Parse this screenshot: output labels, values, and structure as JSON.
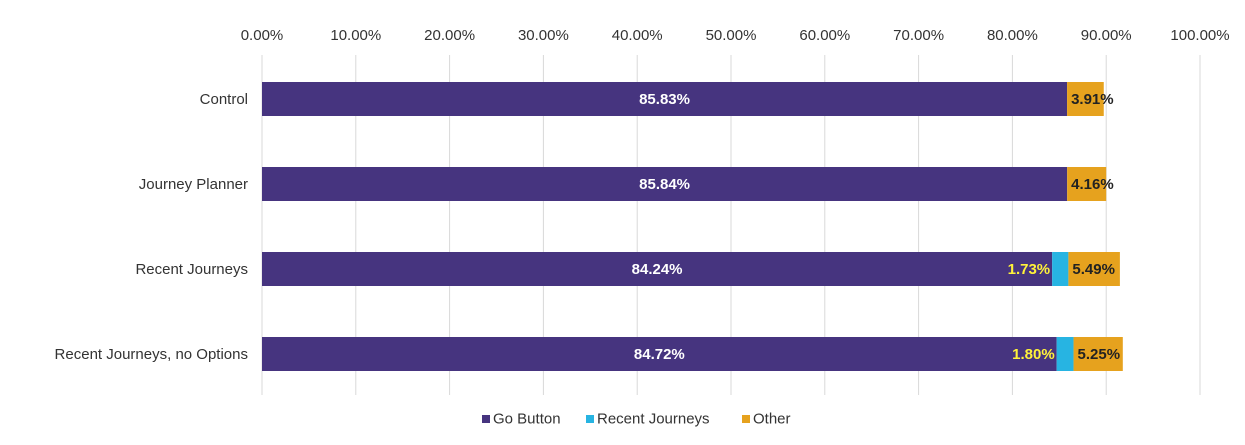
{
  "chart_data": {
    "type": "bar",
    "orientation": "horizontal",
    "stacked": true,
    "categories": [
      "Control",
      "Journey Planner",
      "Recent Journeys",
      "Recent Journeys, no Options"
    ],
    "series": [
      {
        "name": "Go Button",
        "color": "#46347f",
        "values": [
          85.83,
          85.84,
          84.24,
          84.72
        ],
        "labels": [
          "85.83%",
          "85.84%",
          "84.24%",
          "84.72%"
        ],
        "label_color": "#ffffff"
      },
      {
        "name": "Recent Journeys",
        "color": "#27b4e2",
        "values": [
          0,
          0,
          1.73,
          1.8
        ],
        "labels": [
          "",
          "",
          "1.73%",
          "1.80%"
        ],
        "label_color": "#fff23a"
      },
      {
        "name": "Other",
        "color": "#e6a21e",
        "values": [
          3.91,
          4.16,
          5.49,
          5.25
        ],
        "labels": [
          "3.91%",
          "4.16%",
          "5.49%",
          "5.25%"
        ],
        "label_color": "#222222"
      }
    ],
    "xlim": [
      0,
      100
    ],
    "ticks": [
      "0.00%",
      "10.00%",
      "20.00%",
      "30.00%",
      "40.00%",
      "50.00%",
      "60.00%",
      "70.00%",
      "80.00%",
      "90.00%",
      "100.00%"
    ],
    "tick_values": [
      0,
      10,
      20,
      30,
      40,
      50,
      60,
      70,
      80,
      90,
      100
    ],
    "x_axis_position": "top",
    "grid": true,
    "legend_position": "bottom"
  }
}
